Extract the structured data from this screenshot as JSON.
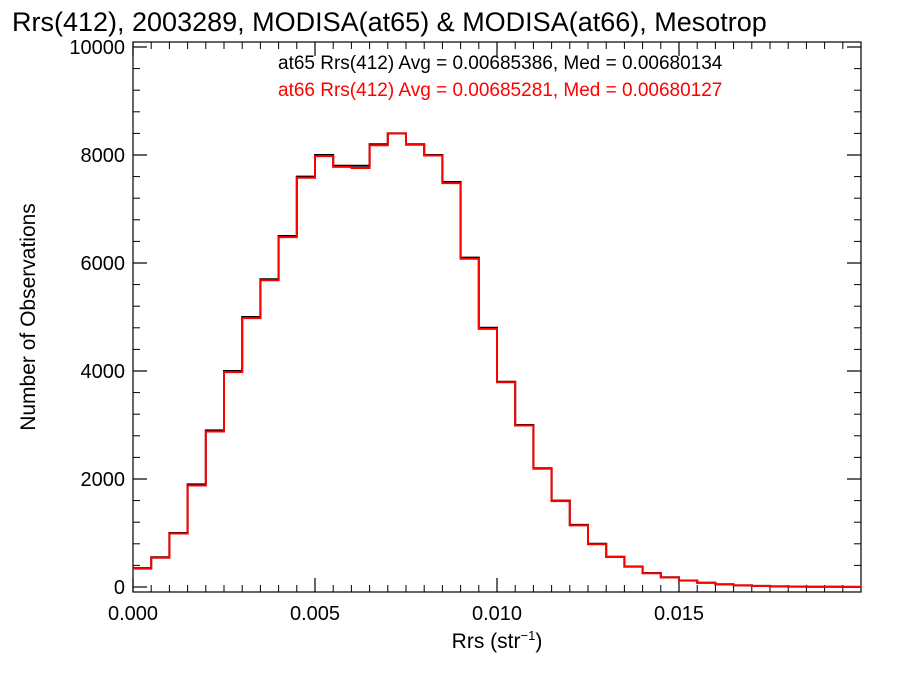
{
  "chart_data": {
    "type": "line",
    "title": "Rrs(412), 2003289, MODISA(at65) & MODISA(at66), Mesotrop",
    "xlabel": "Rrs (str",
    "xlabel_sup": "−1",
    "xlabel_close": ")",
    "ylabel": "Number of Observations",
    "xlim": [
      0.0,
      0.02
    ],
    "ylim": [
      0,
      10000
    ],
    "x_ticks": [
      {
        "value": 0.0,
        "label": "0.000"
      },
      {
        "value": 0.005,
        "label": "0.005"
      },
      {
        "value": 0.01,
        "label": "0.010"
      },
      {
        "value": 0.015,
        "label": "0.015"
      }
    ],
    "y_ticks": [
      {
        "value": 0,
        "label": "0"
      },
      {
        "value": 2000,
        "label": "2000"
      },
      {
        "value": 4000,
        "label": "4000"
      },
      {
        "value": 6000,
        "label": "6000"
      },
      {
        "value": 8000,
        "label": "8000"
      },
      {
        "value": 10000,
        "label": "10000"
      }
    ],
    "annotations": [
      {
        "text": "at65 Rrs(412) Avg = 0.00685386, Med = 0.00680134",
        "color": "#000000"
      },
      {
        "text": "at66 Rrs(412) Avg = 0.00685281, Med = 0.00680127",
        "color": "#ff0000"
      }
    ],
    "grid": false,
    "series": [
      {
        "color": "#000000",
        "x": [
          0.0,
          0.0005,
          0.001,
          0.0015,
          0.002,
          0.0025,
          0.003,
          0.0035,
          0.004,
          0.0045,
          0.005,
          0.0055,
          0.006,
          0.0065,
          0.007,
          0.0075,
          0.008,
          0.0085,
          0.009,
          0.0095,
          0.01,
          0.0105,
          0.011,
          0.0115,
          0.012,
          0.0125,
          0.013,
          0.0135,
          0.014,
          0.0145,
          0.015,
          0.0155,
          0.016,
          0.0165,
          0.017,
          0.0175,
          0.018,
          0.0185,
          0.019,
          0.0195,
          0.02
        ],
        "y": [
          350,
          550,
          1000,
          1900,
          2900,
          4000,
          5000,
          5700,
          6500,
          7600,
          8000,
          7800,
          7800,
          8200,
          8400,
          8200,
          8000,
          7500,
          6100,
          4800,
          3800,
          3000,
          2200,
          1600,
          1150,
          800,
          560,
          380,
          260,
          180,
          120,
          80,
          50,
          30,
          20,
          12,
          8,
          5,
          3,
          2,
          1
        ]
      },
      {
        "color": "#ff0000",
        "x": [
          0.0,
          0.0005,
          0.001,
          0.0015,
          0.002,
          0.0025,
          0.003,
          0.0035,
          0.004,
          0.0045,
          0.005,
          0.0055,
          0.006,
          0.0065,
          0.007,
          0.0075,
          0.008,
          0.0085,
          0.009,
          0.0095,
          0.01,
          0.0105,
          0.011,
          0.0115,
          0.012,
          0.0125,
          0.013,
          0.0135,
          0.014,
          0.0145,
          0.015,
          0.0155,
          0.016,
          0.0165,
          0.017,
          0.0175,
          0.018,
          0.0185,
          0.019,
          0.0195,
          0.02
        ],
        "y": [
          340,
          540,
          990,
          1880,
          2880,
          3980,
          4980,
          5680,
          6480,
          7580,
          7980,
          7780,
          7760,
          8180,
          8400,
          8190,
          7990,
          7480,
          6080,
          4780,
          3790,
          2990,
          2190,
          1590,
          1140,
          790,
          555,
          375,
          255,
          175,
          118,
          78,
          49,
          29,
          19,
          11,
          7,
          4,
          3,
          2,
          1
        ]
      }
    ]
  }
}
